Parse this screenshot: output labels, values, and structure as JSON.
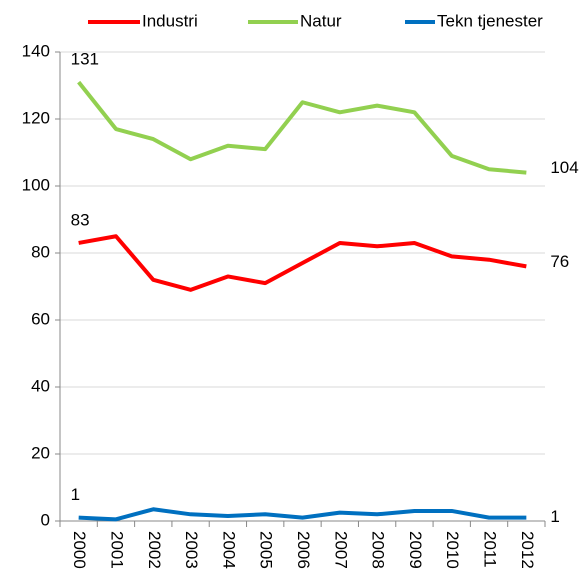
{
  "chart_data": {
    "type": "line",
    "categories": [
      "2000",
      "2001",
      "2002",
      "2003",
      "2004",
      "2005",
      "2006",
      "2007",
      "2008",
      "2009",
      "2010",
      "2011",
      "2012"
    ],
    "series": [
      {
        "name": "Industri",
        "color": "#ff0000",
        "values": [
          83,
          85,
          72,
          69,
          73,
          71,
          77,
          83,
          82,
          83,
          79,
          78,
          76
        ]
      },
      {
        "name": "Natur",
        "color": "#92d050",
        "values": [
          131,
          117,
          114,
          108,
          112,
          111,
          125,
          122,
          124,
          122,
          109,
          105,
          104
        ]
      },
      {
        "name": "Tekn tjenester",
        "color": "#0070c0",
        "values": [
          1,
          0.5,
          3.5,
          2,
          1.5,
          2,
          1,
          2.5,
          2,
          3,
          3,
          1,
          1
        ]
      }
    ],
    "ylim": [
      0,
      140
    ],
    "yticks": [
      0,
      20,
      40,
      60,
      80,
      100,
      120,
      140
    ],
    "grid": true
  }
}
